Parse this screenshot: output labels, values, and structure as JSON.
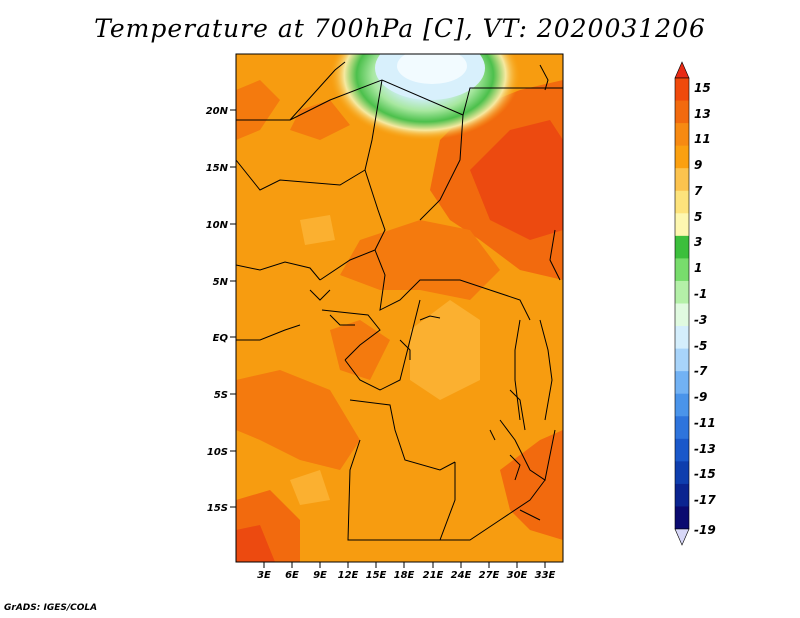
{
  "title": "Temperature at 700hPa [C], VT: 2020031206",
  "credit": "GrADS: IGES/COLA",
  "map": {
    "lat_ticks": [
      "20N",
      "15N",
      "10N",
      "5N",
      "EQ",
      "5S",
      "10S",
      "15S"
    ],
    "lon_ticks": [
      "3E",
      "6E",
      "9E",
      "12E",
      "15E",
      "18E",
      "21E",
      "24E",
      "27E",
      "30E",
      "33E"
    ]
  },
  "colorbar": {
    "labels": [
      "15",
      "13",
      "11",
      "9",
      "7",
      "5",
      "3",
      "1",
      "-1",
      "-3",
      "-5",
      "-7",
      "-9",
      "-11",
      "-13",
      "-15",
      "-17",
      "-19"
    ],
    "colors": [
      "#e82a14",
      "#f04a0c",
      "#f26a0e",
      "#f78a12",
      "#fba010",
      "#fcc34e",
      "#fde37c",
      "#fdf7b0",
      "#3cbf3c",
      "#78dc6c",
      "#b4f0a8",
      "#e0fae0",
      "#d4eefc",
      "#a8d4fa",
      "#72b2f4",
      "#4a94ea",
      "#2e74dc",
      "#1a58ca",
      "#0e3eae",
      "#0a2490",
      "#0a0a70",
      "#d8d8f8"
    ]
  }
}
